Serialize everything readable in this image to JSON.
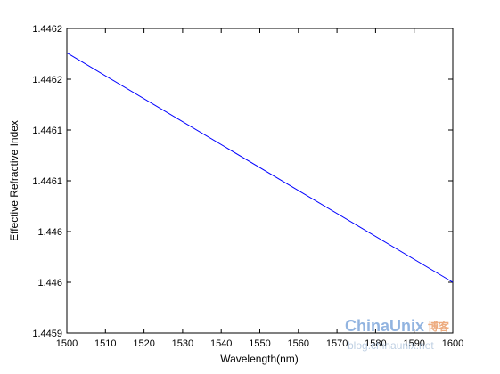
{
  "chart_data": {
    "type": "line",
    "xlabel": "Wavelength(nm)",
    "ylabel": "Effective Refractive Index",
    "xlim": [
      1500,
      1600
    ],
    "ylim": [
      1.4459,
      1.4462
    ],
    "x_ticks": [
      1500,
      1510,
      1520,
      1530,
      1540,
      1550,
      1560,
      1570,
      1580,
      1590,
      1600
    ],
    "x_tick_labels": [
      "1500",
      "1510",
      "1520",
      "1530",
      "1540",
      "1550",
      "1560",
      "1570",
      "1580",
      "1590",
      "1600"
    ],
    "y_ticks": [
      1.4459,
      1.44595,
      1.446,
      1.44605,
      1.4461,
      1.44615,
      1.4462
    ],
    "y_tick_labels": [
      "1.4459",
      "1.446",
      "1.446",
      "1.4461",
      "1.4461",
      "1.4462",
      "1.4462"
    ],
    "series": [
      {
        "x": [
          1500,
          1600
        ],
        "y": [
          1.446176,
          1.44595
        ],
        "color": "#0000ff"
      }
    ],
    "grid": false,
    "box": true
  },
  "watermark": {
    "main": "ChinaUnix",
    "cn": "博客",
    "sub": "blog.chinaunix.net"
  }
}
